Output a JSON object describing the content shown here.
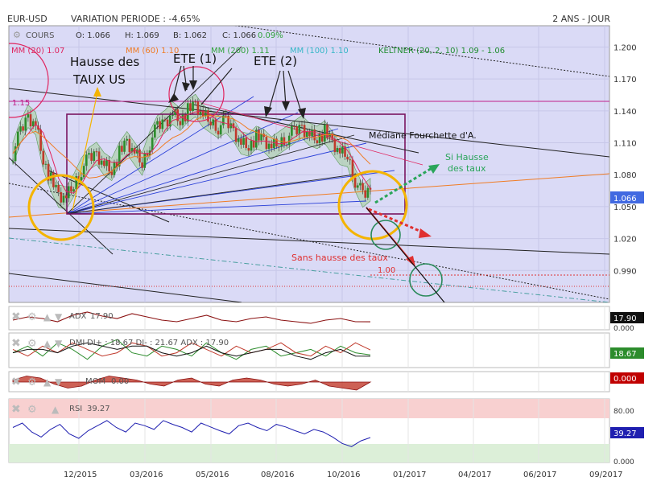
{
  "header": {
    "symbol": "EUR-USD",
    "variation": "VARIATION PERIODE : -4.65%",
    "period": "2 ANS - JOUR"
  },
  "legend": {
    "cours_label": "COURS",
    "open": "O: 1.066",
    "high": "H: 1.069",
    "low": "B: 1.062",
    "close": "C: 1.066",
    "change": "0.09%",
    "mm20": "MM (20) 1.07",
    "mm60": "MM (60) 1.10",
    "mm200": "MM (200) 1.11",
    "mm100": "MM (100) 1.10",
    "keltner": "KELTNER (20, 2, 10) 1.09 - 1.06"
  },
  "colors": {
    "bg": "#dadaf6",
    "mm20": "#e0245e",
    "mm60": "#f07c24",
    "mm200": "#2fa23a",
    "mm100": "#35b7c7",
    "keltner": "#1e8c2e",
    "price_tag": "#4169e1",
    "up": "#2c8c2c",
    "down": "#c0392b"
  },
  "annotations": {
    "hausse_line1": "Hausse des",
    "hausse_line2": "TAUX US",
    "ete1": "ETE (1)",
    "ete2": "ETE (2)",
    "mediane": "Médiane Fourchette d'A.",
    "si_hausse_1": "Si Hausse",
    "si_hausse_2": "des taux",
    "sans_hausse": "Sans hausse des taux",
    "level_115": "1.15",
    "level_100": "1.00"
  },
  "chart_data": [
    {
      "type": "line",
      "name": "price",
      "y_ticks": [
        "1.200",
        "1.170",
        "1.140",
        "1.110",
        "1.080",
        "1.050",
        "1.020",
        "0.990"
      ],
      "ylim": [
        0.96,
        1.22
      ],
      "x_ticks": [
        "12/2015",
        "03/2016",
        "05/2016",
        "08/2016",
        "10/2016",
        "01/2017",
        "04/2017",
        "06/2017",
        "09/2017"
      ],
      "last_price": "1.066",
      "series": [
        {
          "values": [
            1.1,
            1.12,
            1.135,
            1.128,
            1.095,
            1.075,
            1.06,
            1.058,
            1.07,
            1.085,
            1.095,
            1.1,
            1.09,
            1.085,
            1.1,
            1.11,
            1.1,
            1.09,
            1.11,
            1.125,
            1.13,
            1.138,
            1.132,
            1.14,
            1.145,
            1.135,
            1.13,
            1.125,
            1.13,
            1.122,
            1.11,
            1.108,
            1.115,
            1.112,
            1.105,
            1.11,
            1.115,
            1.12,
            1.125,
            1.118,
            1.115,
            1.12,
            1.11,
            1.1,
            1.098,
            1.075,
            1.06,
            1.066
          ]
        }
      ]
    },
    {
      "type": "line",
      "name": "ADX",
      "label": "ADX",
      "value": "17.90",
      "y_ticks": [
        "0.000"
      ],
      "series": [
        {
          "values": [
            20,
            24,
            22,
            18,
            26,
            30,
            25,
            22,
            28,
            24,
            20,
            18,
            22,
            26,
            20,
            18,
            22,
            24,
            20,
            18,
            16,
            20,
            22,
            18,
            17.9
          ]
        }
      ]
    },
    {
      "type": "line",
      "name": "DMI",
      "label": "DMI",
      "value_text": "DI+ : 18.67 DI- : 21.67 ADX : 17.90",
      "value": "18.67",
      "series": [
        {
          "name": "DI+",
          "values": [
            20,
            24,
            18,
            26,
            22,
            16,
            24,
            28,
            20,
            18,
            24,
            22,
            18,
            26,
            20,
            16,
            22,
            24,
            18,
            20,
            22,
            18,
            24,
            20,
            18.67
          ]
        },
        {
          "name": "DI-",
          "values": [
            22,
            18,
            24,
            20,
            26,
            22,
            18,
            20,
            26,
            24,
            18,
            20,
            26,
            22,
            18,
            24,
            20,
            22,
            26,
            20,
            18,
            24,
            20,
            26,
            21.67
          ]
        },
        {
          "name": "ADX",
          "values": [
            20,
            22,
            22,
            20,
            24,
            26,
            24,
            22,
            24,
            24,
            20,
            18,
            20,
            24,
            20,
            18,
            20,
            22,
            22,
            18,
            16,
            20,
            22,
            18,
            17.9
          ]
        }
      ]
    },
    {
      "type": "area",
      "name": "MOM",
      "label": "MOM",
      "value_text": "0.00",
      "value": "0.000",
      "series": [
        {
          "values": [
            1,
            3,
            2,
            -1,
            -3,
            -2,
            1,
            3,
            2,
            1,
            -1,
            -2,
            1,
            2,
            -1,
            -2,
            1,
            2,
            1,
            -1,
            -2,
            -1,
            1,
            -2,
            -3,
            -4,
            0
          ]
        }
      ]
    },
    {
      "type": "line",
      "name": "RSI",
      "label": "RSI",
      "value_text": "39.27",
      "value": "39.27",
      "y_ticks": [
        "80.00",
        "0.000"
      ],
      "ylim": [
        0,
        100
      ],
      "series": [
        {
          "values": [
            55,
            62,
            48,
            40,
            52,
            60,
            45,
            38,
            50,
            58,
            66,
            55,
            48,
            62,
            58,
            52,
            66,
            60,
            55,
            48,
            62,
            56,
            50,
            45,
            58,
            62,
            55,
            50,
            60,
            56,
            50,
            45,
            52,
            48,
            40,
            30,
            25,
            34,
            39.27
          ]
        }
      ]
    }
  ]
}
